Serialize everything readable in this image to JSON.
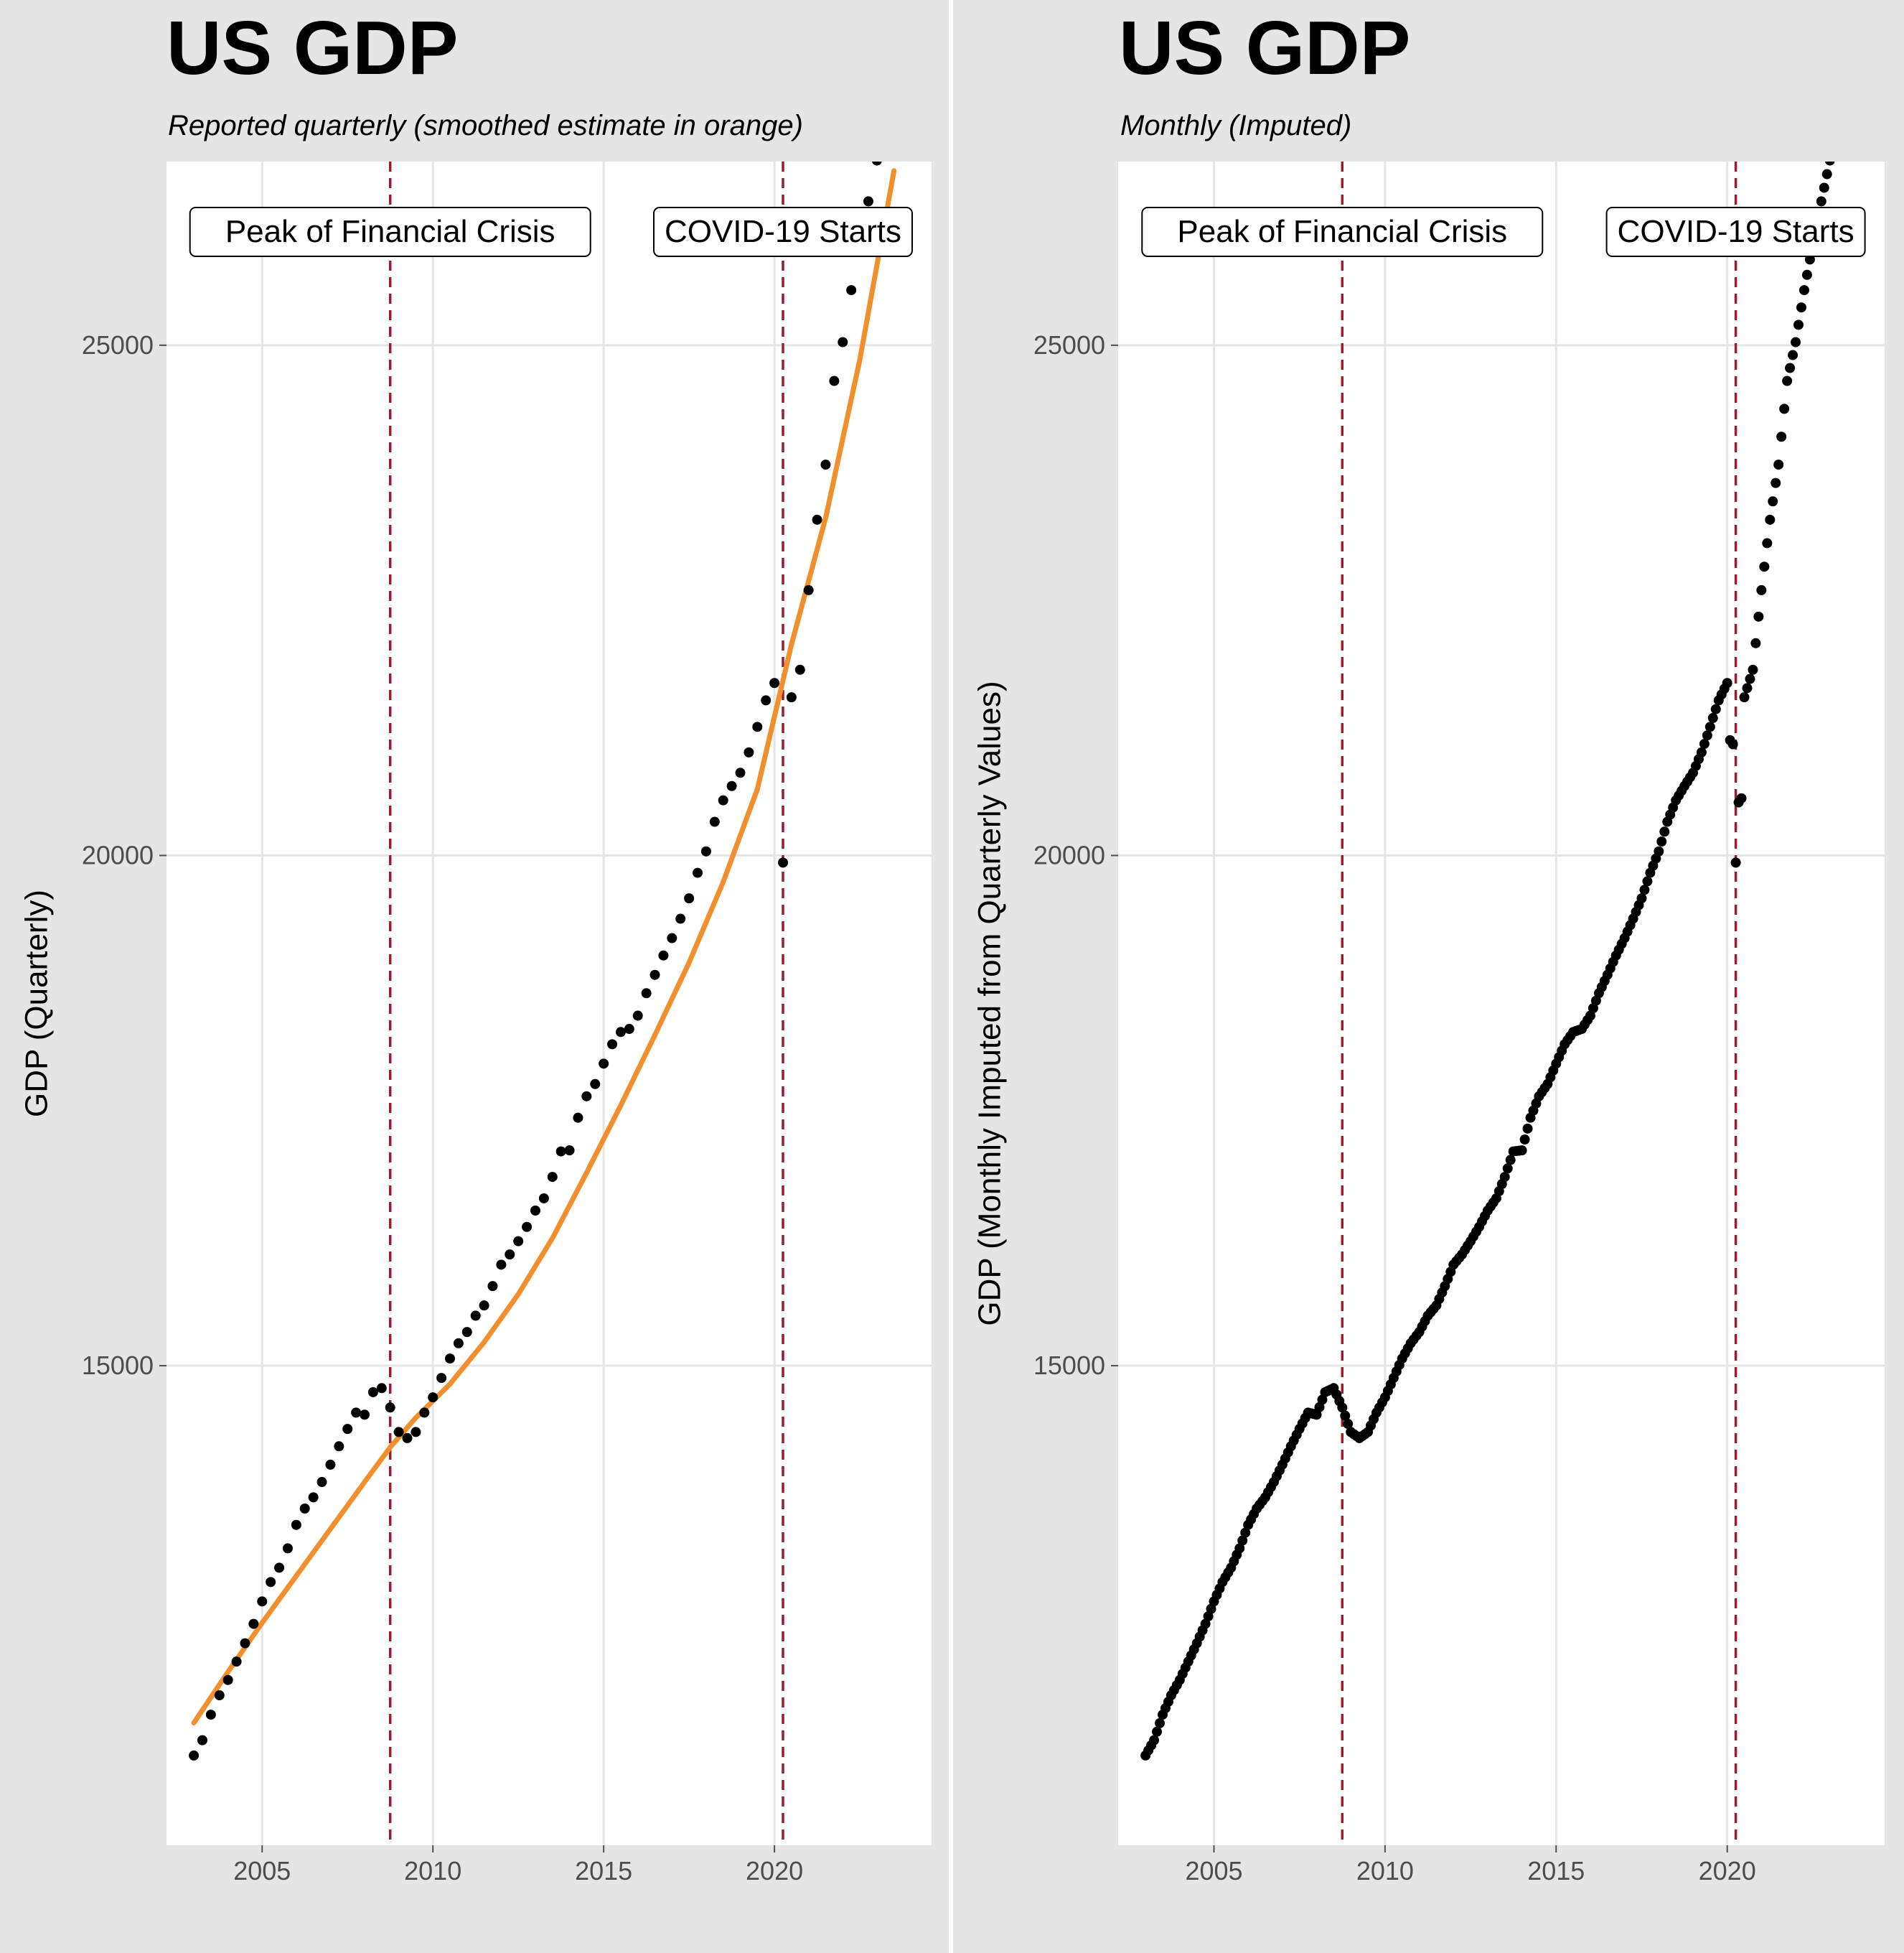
{
  "panels": [
    {
      "title": "US GDP",
      "subtitle": "Reported quarterly (smoothed estimate in orange)",
      "ylabel": "GDP (Quarterly)"
    },
    {
      "title": "US GDP",
      "subtitle": "Monthly (Imputed)",
      "ylabel": "GDP (Monthly Imputed from Quarterly Values)"
    }
  ],
  "chart_data": [
    {
      "type": "scatter",
      "title": "US GDP",
      "subtitle": "Reported quarterly (smoothed estimate in orange)",
      "xlabel": "",
      "ylabel": "GDP (Quarterly)",
      "xlim": [
        2002.2,
        2024.6
      ],
      "ylim": [
        10300,
        26800
      ],
      "x_ticks": [
        2005,
        2010,
        2015,
        2020
      ],
      "y_ticks": [
        15000,
        20000,
        25000
      ],
      "grid": true,
      "colors": {
        "points": "#000000",
        "smooth": "#f28e2b",
        "vline": "#9b1c31",
        "background": "#e5e5e5",
        "grid": "#ffffff"
      },
      "vlines": [
        {
          "x": 2008.75,
          "label": "Peak of Financial Crisis"
        },
        {
          "x": 2020.25,
          "label": "COVID-19 Starts"
        }
      ],
      "series": [
        {
          "name": "",
          "kind": "points",
          "x": [
            2003.0,
            2003.25,
            2003.5,
            2003.75,
            2004.0,
            2004.25,
            2004.5,
            2004.75,
            2005.0,
            2005.25,
            2005.5,
            2005.75,
            2006.0,
            2006.25,
            2006.5,
            2006.75,
            2007.0,
            2007.25,
            2007.5,
            2007.75,
            2008.0,
            2008.25,
            2008.5,
            2008.75,
            2009.0,
            2009.25,
            2009.5,
            2009.75,
            2010.0,
            2010.25,
            2010.5,
            2010.75,
            2011.0,
            2011.25,
            2011.5,
            2011.75,
            2012.0,
            2012.25,
            2012.5,
            2012.75,
            2013.0,
            2013.25,
            2013.5,
            2013.75,
            2014.0,
            2014.25,
            2014.5,
            2014.75,
            2015.0,
            2015.25,
            2015.5,
            2015.75,
            2016.0,
            2016.25,
            2016.5,
            2016.75,
            2017.0,
            2017.25,
            2017.5,
            2017.75,
            2018.0,
            2018.25,
            2018.5,
            2018.75,
            2019.0,
            2019.25,
            2019.5,
            2019.75,
            2020.0,
            2020.25,
            2020.5,
            2020.75,
            2021.0,
            2021.25,
            2021.5,
            2021.75,
            2022.0,
            2022.25,
            2022.5,
            2022.75,
            2023.0,
            2023.25
          ],
          "y": [
            11180,
            11330,
            11580,
            11770,
            11920,
            12100,
            12280,
            12470,
            12690,
            12880,
            13020,
            13210,
            13440,
            13600,
            13710,
            13860,
            14030,
            14210,
            14380,
            14540,
            14520,
            14740,
            14780,
            14590,
            14350,
            14290,
            14350,
            14540,
            14690,
            14880,
            15070,
            15220,
            15330,
            15490,
            15590,
            15780,
            15990,
            16090,
            16220,
            16360,
            16520,
            16640,
            16850,
            17100,
            17110,
            17430,
            17640,
            17760,
            17960,
            18150,
            18270,
            18300,
            18430,
            18650,
            18830,
            19020,
            19190,
            19380,
            19580,
            19830,
            20040,
            20330,
            20540,
            20680,
            20810,
            21010,
            21260,
            21520,
            21690,
            19930,
            21550,
            21820,
            22600,
            23290,
            23830,
            24650,
            25030,
            25540,
            25990,
            26410,
            26810,
            27080
          ]
        },
        {
          "name": "",
          "kind": "smooth",
          "x": [
            2003.0,
            2004.0,
            2005.0,
            2006.0,
            2007.0,
            2008.0,
            2008.75,
            2009.5,
            2010.5,
            2011.5,
            2012.5,
            2013.5,
            2014.5,
            2015.5,
            2016.5,
            2017.5,
            2018.5,
            2019.5,
            2020.5,
            2021.5,
            2022.5,
            2023.5
          ],
          "y": [
            11500,
            12000,
            12480,
            12940,
            13400,
            13860,
            14200,
            14490,
            14820,
            15230,
            15700,
            16250,
            16890,
            17550,
            18240,
            18950,
            19740,
            20650,
            22070,
            23310,
            24860,
            26710
          ]
        }
      ]
    },
    {
      "type": "scatter",
      "title": "US GDP",
      "subtitle": "Monthly (Imputed)",
      "xlabel": "",
      "ylabel": "GDP (Monthly Imputed from Quarterly Values)",
      "xlim": [
        2002.2,
        2024.6
      ],
      "ylim": [
        10300,
        26800
      ],
      "x_ticks": [
        2005,
        2010,
        2015,
        2020
      ],
      "y_ticks": [
        15000,
        20000,
        25000
      ],
      "grid": true,
      "colors": {
        "points": "#000000",
        "vline": "#9b1c31",
        "background": "#e5e5e5",
        "grid": "#ffffff"
      },
      "vlines": [
        {
          "x": 2008.75,
          "label": "Peak of Financial Crisis"
        },
        {
          "x": 2020.25,
          "label": "COVID-19 Starts"
        }
      ],
      "series": [
        {
          "name": "",
          "kind": "points",
          "x": [
            2003.0,
            2003.25,
            2003.5,
            2003.75,
            2004.0,
            2004.25,
            2004.5,
            2004.75,
            2005.0,
            2005.25,
            2005.5,
            2005.75,
            2006.0,
            2006.25,
            2006.5,
            2006.75,
            2007.0,
            2007.25,
            2007.5,
            2007.75,
            2008.0,
            2008.25,
            2008.5,
            2008.75,
            2009.0,
            2009.25,
            2009.5,
            2009.75,
            2010.0,
            2010.25,
            2010.5,
            2010.75,
            2011.0,
            2011.25,
            2011.5,
            2011.75,
            2012.0,
            2012.25,
            2012.5,
            2012.75,
            2013.0,
            2013.25,
            2013.5,
            2013.75,
            2014.0,
            2014.25,
            2014.5,
            2014.75,
            2015.0,
            2015.25,
            2015.5,
            2015.75,
            2016.0,
            2016.25,
            2016.5,
            2016.75,
            2017.0,
            2017.25,
            2017.5,
            2017.75,
            2018.0,
            2018.25,
            2018.5,
            2018.75,
            2019.0,
            2019.25,
            2019.5,
            2019.75,
            2020.0,
            2020.25,
            2020.5,
            2020.75,
            2021.0,
            2021.25,
            2021.5,
            2021.75,
            2022.0,
            2022.25,
            2022.5,
            2022.75,
            2023.0,
            2023.25
          ],
          "y": [
            11180,
            11330,
            11580,
            11770,
            11920,
            12100,
            12280,
            12470,
            12690,
            12880,
            13020,
            13210,
            13440,
            13600,
            13710,
            13860,
            14030,
            14210,
            14380,
            14540,
            14520,
            14740,
            14780,
            14590,
            14350,
            14290,
            14350,
            14540,
            14690,
            14880,
            15070,
            15220,
            15330,
            15490,
            15590,
            15780,
            15990,
            16090,
            16220,
            16360,
            16520,
            16640,
            16850,
            17100,
            17110,
            17430,
            17640,
            17760,
            17960,
            18150,
            18270,
            18300,
            18430,
            18650,
            18830,
            19020,
            19190,
            19380,
            19580,
            19830,
            20040,
            20330,
            20540,
            20680,
            20810,
            21010,
            21260,
            21520,
            21690,
            19930,
            21550,
            21820,
            22600,
            23290,
            23830,
            24650,
            25030,
            25540,
            25990,
            26410,
            26810,
            27080
          ]
        }
      ]
    }
  ]
}
